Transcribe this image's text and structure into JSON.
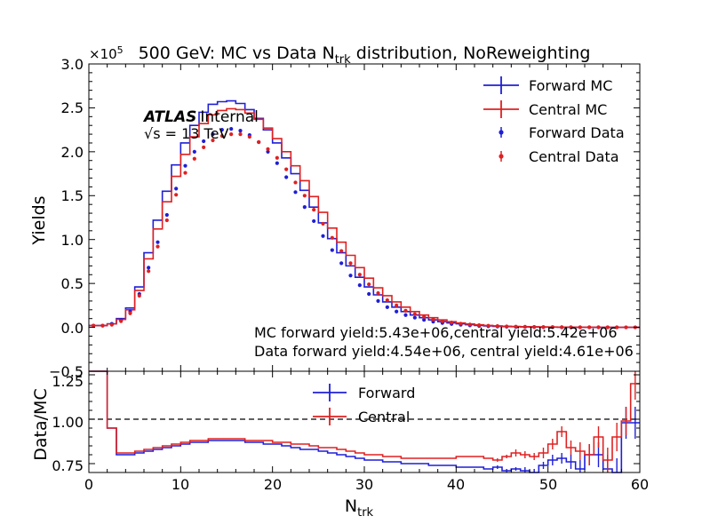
{
  "chart_data": [
    {
      "type": "line",
      "panel": "main",
      "title_main": "500 GeV: MC vs Data N",
      "title_sub": "trk",
      "title_tail": " distribution, NoReweighting",
      "ylabel": "Yields",
      "y_multiplier": "×10",
      "y_multiplier_exp": "5",
      "xlim": [
        0,
        60
      ],
      "ylim": [
        -0.5,
        3.0
      ],
      "y_ticks": [
        "3.0",
        "2.5",
        "2.0",
        "1.5",
        "1.0",
        "0.5",
        "0.0",
        "−0.5"
      ],
      "y_tick_values": [
        3.0,
        2.5,
        2.0,
        1.5,
        1.0,
        0.5,
        0.0,
        -0.5
      ],
      "legend_position": "top-right",
      "atlas_label": "ATLAS",
      "atlas_status": "Internal",
      "energy_label": "√s = 13 TeV",
      "annotations": [
        "MC forward yield:5.43e+06,central yield:5.42e+06",
        "Data forward yield:4.54e+06, central yield:4.61e+06"
      ],
      "x": [
        0,
        1,
        2,
        3,
        4,
        5,
        6,
        7,
        8,
        9,
        10,
        11,
        12,
        13,
        14,
        15,
        16,
        17,
        18,
        19,
        20,
        21,
        22,
        23,
        24,
        25,
        26,
        27,
        28,
        29,
        30,
        31,
        32,
        33,
        34,
        35,
        36,
        37,
        38,
        39,
        40,
        41,
        42,
        43,
        44,
        45,
        46,
        47,
        48,
        49,
        50,
        51,
        52,
        53,
        54,
        55,
        56,
        57,
        58,
        59
      ],
      "series": [
        {
          "name": "Forward MC",
          "kind": "histogram",
          "color": "#1f1fd6",
          "values": [
            0.02,
            0.02,
            0.04,
            0.1,
            0.22,
            0.46,
            0.85,
            1.22,
            1.55,
            1.85,
            2.1,
            2.3,
            2.45,
            2.54,
            2.57,
            2.58,
            2.55,
            2.48,
            2.38,
            2.25,
            2.1,
            1.93,
            1.75,
            1.56,
            1.37,
            1.19,
            1.01,
            0.85,
            0.7,
            0.57,
            0.46,
            0.37,
            0.29,
            0.23,
            0.18,
            0.14,
            0.11,
            0.085,
            0.065,
            0.05,
            0.04,
            0.03,
            0.022,
            0.016,
            0.012,
            0.009,
            0.007,
            0.005,
            0.004,
            0.003,
            0.002,
            0.0015,
            0.001,
            0.0008,
            0.0006,
            0.0005,
            0.0004,
            0.0003,
            0.0002,
            0.0002
          ]
        },
        {
          "name": "Central MC",
          "kind": "histogram",
          "color": "#e02020",
          "values": [
            0.02,
            0.02,
            0.04,
            0.09,
            0.2,
            0.42,
            0.78,
            1.12,
            1.43,
            1.72,
            1.97,
            2.17,
            2.32,
            2.42,
            2.47,
            2.49,
            2.48,
            2.44,
            2.37,
            2.27,
            2.15,
            2.0,
            1.84,
            1.67,
            1.49,
            1.31,
            1.13,
            0.97,
            0.82,
            0.68,
            0.56,
            0.45,
            0.36,
            0.29,
            0.23,
            0.18,
            0.14,
            0.11,
            0.085,
            0.065,
            0.05,
            0.038,
            0.029,
            0.022,
            0.017,
            0.013,
            0.01,
            0.008,
            0.006,
            0.005,
            0.004,
            0.003,
            0.002,
            0.0015,
            0.001,
            0.0008,
            0.0006,
            0.0005,
            0.0004,
            0.0003
          ]
        },
        {
          "name": "Forward Data",
          "kind": "points",
          "color": "#1f1fd6",
          "values": [
            0.02,
            0.02,
            0.04,
            0.08,
            0.18,
            0.38,
            0.68,
            0.97,
            1.28,
            1.58,
            1.84,
            2.0,
            2.12,
            2.2,
            2.25,
            2.26,
            2.24,
            2.19,
            2.11,
            2.0,
            1.87,
            1.71,
            1.54,
            1.37,
            1.21,
            1.04,
            0.88,
            0.73,
            0.59,
            0.48,
            0.38,
            0.3,
            0.23,
            0.18,
            0.14,
            0.11,
            0.085,
            0.065,
            0.05,
            0.038,
            0.029,
            0.022,
            0.016,
            0.012,
            0.009,
            0.007,
            0.005,
            0.004,
            0.003,
            0.002,
            0.0015,
            0.001,
            0.0008,
            0.0006,
            0.0005,
            0.0004,
            0.0003,
            0.0002,
            0.0002,
            0.0001
          ]
        },
        {
          "name": "Central Data",
          "kind": "points",
          "color": "#e02020",
          "values": [
            0.02,
            0.02,
            0.03,
            0.07,
            0.16,
            0.36,
            0.64,
            0.92,
            1.22,
            1.51,
            1.76,
            1.92,
            2.05,
            2.13,
            2.18,
            2.2,
            2.2,
            2.17,
            2.11,
            2.03,
            1.93,
            1.8,
            1.65,
            1.5,
            1.34,
            1.18,
            1.02,
            0.87,
            0.73,
            0.6,
            0.49,
            0.39,
            0.31,
            0.25,
            0.19,
            0.15,
            0.12,
            0.09,
            0.07,
            0.055,
            0.042,
            0.032,
            0.025,
            0.019,
            0.015,
            0.011,
            0.009,
            0.007,
            0.005,
            0.004,
            0.003,
            0.002,
            0.0015,
            0.001,
            0.0008,
            0.0006,
            0.0005,
            0.0004,
            0.0003,
            0.0002
          ]
        }
      ]
    },
    {
      "type": "line",
      "panel": "ratio",
      "xlabel": "N",
      "xlabel_sub": "trk",
      "ylabel": "Data/MC",
      "xlim": [
        0,
        60
      ],
      "ylim": [
        0.7,
        1.27
      ],
      "x_ticks": [
        "0",
        "10",
        "20",
        "30",
        "40",
        "50",
        "60"
      ],
      "y_ticks": [
        "1.25",
        "1.00",
        "0.75"
      ],
      "y_tick_values": [
        1.25,
        1.0,
        0.75
      ],
      "reference_line": 1.0,
      "legend_position": "top-center",
      "x": [
        0,
        1,
        2,
        3,
        4,
        5,
        6,
        7,
        8,
        9,
        10,
        11,
        12,
        13,
        14,
        15,
        16,
        17,
        18,
        19,
        20,
        21,
        22,
        23,
        24,
        25,
        26,
        27,
        28,
        29,
        30,
        31,
        32,
        33,
        34,
        35,
        36,
        37,
        38,
        39,
        40,
        41,
        42,
        43,
        44,
        45,
        46,
        47,
        48,
        49,
        50,
        51,
        52,
        53,
        54,
        55,
        56,
        57,
        58,
        59
      ],
      "series": [
        {
          "name": "Forward",
          "color": "#1f1fd6",
          "values": [
            1.27,
            1.27,
            0.95,
            0.8,
            0.8,
            0.81,
            0.82,
            0.83,
            0.84,
            0.85,
            0.86,
            0.87,
            0.87,
            0.88,
            0.88,
            0.88,
            0.88,
            0.87,
            0.87,
            0.86,
            0.86,
            0.85,
            0.84,
            0.83,
            0.83,
            0.82,
            0.81,
            0.8,
            0.79,
            0.78,
            0.77,
            0.77,
            0.76,
            0.76,
            0.75,
            0.75,
            0.75,
            0.74,
            0.74,
            0.74,
            0.73,
            0.73,
            0.73,
            0.72,
            0.73,
            0.71,
            0.72,
            0.71,
            0.7,
            0.74,
            0.77,
            0.78,
            0.76,
            0.72,
            0.8,
            0.8,
            0.72,
            0.7,
            0.98,
            0.98
          ],
          "errors": [
            0,
            0,
            0,
            0,
            0,
            0,
            0,
            0,
            0,
            0,
            0,
            0,
            0,
            0,
            0,
            0,
            0,
            0,
            0,
            0,
            0,
            0,
            0,
            0,
            0,
            0,
            0,
            0,
            0,
            0,
            0,
            0,
            0,
            0,
            0,
            0,
            0,
            0,
            0,
            0,
            0,
            0,
            0,
            0,
            0.01,
            0.01,
            0.01,
            0.02,
            0.02,
            0.02,
            0.03,
            0.03,
            0.04,
            0.05,
            0.06,
            0.07,
            0.08,
            0.08,
            0.09,
            0.09
          ]
        },
        {
          "name": "Central",
          "color": "#e02020",
          "values": [
            1.27,
            1.27,
            0.95,
            0.81,
            0.81,
            0.82,
            0.83,
            0.84,
            0.85,
            0.86,
            0.87,
            0.88,
            0.88,
            0.89,
            0.89,
            0.89,
            0.89,
            0.88,
            0.88,
            0.88,
            0.87,
            0.87,
            0.86,
            0.86,
            0.85,
            0.84,
            0.84,
            0.83,
            0.82,
            0.81,
            0.8,
            0.8,
            0.79,
            0.79,
            0.78,
            0.78,
            0.78,
            0.78,
            0.78,
            0.78,
            0.79,
            0.79,
            0.79,
            0.78,
            0.77,
            0.79,
            0.81,
            0.8,
            0.79,
            0.81,
            0.86,
            0.93,
            0.84,
            0.82,
            0.8,
            0.9,
            0.77,
            0.9,
            0.99,
            1.2
          ],
          "errors": [
            0,
            0,
            0,
            0,
            0,
            0,
            0,
            0,
            0,
            0,
            0,
            0,
            0,
            0,
            0,
            0,
            0,
            0,
            0,
            0,
            0,
            0,
            0,
            0,
            0,
            0,
            0,
            0,
            0,
            0,
            0,
            0,
            0,
            0,
            0,
            0,
            0,
            0,
            0,
            0,
            0,
            0,
            0,
            0,
            0.01,
            0.01,
            0.02,
            0.02,
            0.02,
            0.03,
            0.03,
            0.03,
            0.04,
            0.05,
            0.06,
            0.06,
            0.07,
            0.08,
            0.08,
            0.09
          ]
        }
      ]
    }
  ]
}
